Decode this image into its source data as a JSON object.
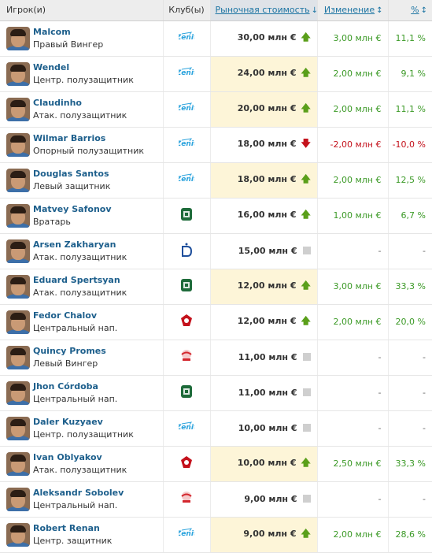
{
  "header": {
    "player": "Игрок(и)",
    "club": "Клуб(ы)",
    "value": "Рыночная стоимость",
    "change": "Изменение",
    "pct": "%"
  },
  "icons": {
    "sort_active": "sort-down-arrow",
    "sort_inactive": "sort-updown-arrow",
    "trend_up": "green-up-arrow",
    "trend_down": "red-down-arrow",
    "trend_none": "grey-square"
  },
  "colors": {
    "link": "#1d75a3",
    "positive": "#3c9a27",
    "negative": "#c4121c",
    "highlight": "#fdf5d8"
  },
  "clubs": {
    "zenit": {
      "name": "zenit-crest",
      "color": "#2aa3dd"
    },
    "krasnodar": {
      "name": "krasnodar-crest",
      "color": "#1e6b3a"
    },
    "dinamo": {
      "name": "dinamo-crest",
      "color": "#1f4f9c"
    },
    "cska": {
      "name": "cska-crest",
      "color": "#c4121c"
    },
    "spartak": {
      "name": "spartak-crest",
      "color": "#d3262d"
    }
  },
  "players": [
    {
      "name": "Malcom",
      "position": "Правый Вингер",
      "club": "zenit",
      "value": "30,00 млн €",
      "trend": "up",
      "change": "3,00 млн €",
      "pct": "11,1 %",
      "dir": "pos",
      "highlight": false
    },
    {
      "name": "Wendel",
      "position": "Центр. полузащитник",
      "club": "zenit",
      "value": "24,00 млн €",
      "trend": "up",
      "change": "2,00 млн €",
      "pct": "9,1 %",
      "dir": "pos",
      "highlight": true
    },
    {
      "name": "Claudinho",
      "position": "Атак. полузащитник",
      "club": "zenit",
      "value": "20,00 млн €",
      "trend": "up",
      "change": "2,00 млн €",
      "pct": "11,1 %",
      "dir": "pos",
      "highlight": true
    },
    {
      "name": "Wilmar Barrios",
      "position": "Опорный полузащитник",
      "club": "zenit",
      "value": "18,00 млн €",
      "trend": "down",
      "change": "-2,00 млн €",
      "pct": "-10,0 %",
      "dir": "neg",
      "highlight": false
    },
    {
      "name": "Douglas Santos",
      "position": "Левый защитник",
      "club": "zenit",
      "value": "18,00 млн €",
      "trend": "up",
      "change": "2,00 млн €",
      "pct": "12,5 %",
      "dir": "pos",
      "highlight": true
    },
    {
      "name": "Matvey Safonov",
      "position": "Вратарь",
      "club": "krasnodar",
      "value": "16,00 млн €",
      "trend": "up",
      "change": "1,00 млн €",
      "pct": "6,7 %",
      "dir": "pos",
      "highlight": false
    },
    {
      "name": "Arsen Zakharyan",
      "position": "Атак. полузащитник",
      "club": "dinamo",
      "value": "15,00 млн €",
      "trend": "none",
      "change": "-",
      "pct": "-",
      "dir": "neu",
      "highlight": false
    },
    {
      "name": "Eduard Spertsyan",
      "position": "Атак. полузащитник",
      "club": "krasnodar",
      "value": "12,00 млн €",
      "trend": "up",
      "change": "3,00 млн €",
      "pct": "33,3 %",
      "dir": "pos",
      "highlight": true
    },
    {
      "name": "Fedor Chalov",
      "position": "Центральный нап.",
      "club": "cska",
      "value": "12,00 млн €",
      "trend": "up",
      "change": "2,00 млн €",
      "pct": "20,0 %",
      "dir": "pos",
      "highlight": false
    },
    {
      "name": "Quincy Promes",
      "position": "Левый Вингер",
      "club": "spartak",
      "value": "11,00 млн €",
      "trend": "none",
      "change": "-",
      "pct": "-",
      "dir": "neu",
      "highlight": false
    },
    {
      "name": "Jhon Córdoba",
      "position": "Центральный нап.",
      "club": "krasnodar",
      "value": "11,00 млн €",
      "trend": "none",
      "change": "-",
      "pct": "-",
      "dir": "neu",
      "highlight": false
    },
    {
      "name": "Daler Kuzyaev",
      "position": "Центр. полузащитник",
      "club": "zenit",
      "value": "10,00 млн €",
      "trend": "none",
      "change": "-",
      "pct": "-",
      "dir": "neu",
      "highlight": false
    },
    {
      "name": "Ivan Oblyakov",
      "position": "Атак. полузащитник",
      "club": "cska",
      "value": "10,00 млн €",
      "trend": "up",
      "change": "2,50 млн €",
      "pct": "33,3 %",
      "dir": "pos",
      "highlight": true
    },
    {
      "name": "Aleksandr Sobolev",
      "position": "Центральный нап.",
      "club": "spartak",
      "value": "9,00 млн €",
      "trend": "none",
      "change": "-",
      "pct": "-",
      "dir": "neu",
      "highlight": false
    },
    {
      "name": "Robert Renan",
      "position": "Центр. защитник",
      "club": "zenit",
      "value": "9,00 млн €",
      "trend": "up",
      "change": "2,00 млн €",
      "pct": "28,6 %",
      "dir": "pos",
      "highlight": true
    }
  ]
}
